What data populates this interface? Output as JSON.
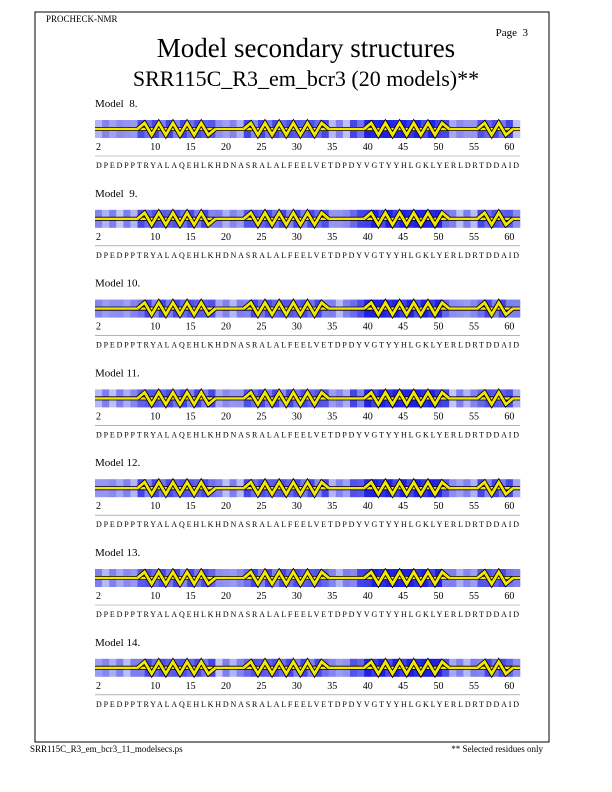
{
  "header": {
    "program": "PROCHECK-NMR",
    "page": "Page  3",
    "title": "Model secondary structures",
    "subtitle": "SRR115C_R3_em_bcr3 (20 models)**"
  },
  "models": [
    {
      "label": "Model  8."
    },
    {
      "label": "Model  9."
    },
    {
      "label": "Model 10."
    },
    {
      "label": "Model 11."
    },
    {
      "label": "Model 12."
    },
    {
      "label": "Model 13."
    },
    {
      "label": "Model 14."
    }
  ],
  "residue_ticks": [
    "2",
    "10",
    "15",
    "20",
    "25",
    "30",
    "35",
    "40",
    "45",
    "50",
    "55",
    "60"
  ],
  "sequence": "DPEDPPTRYALAQEHLKHDNASRALALFEELVETDPDYVGTYYHLGKLYERLDRTDDAID",
  "footer": {
    "file": "SRR115C_R3_em_bcr3_11_modelsecs.ps",
    "note": "** Selected residues only"
  }
}
